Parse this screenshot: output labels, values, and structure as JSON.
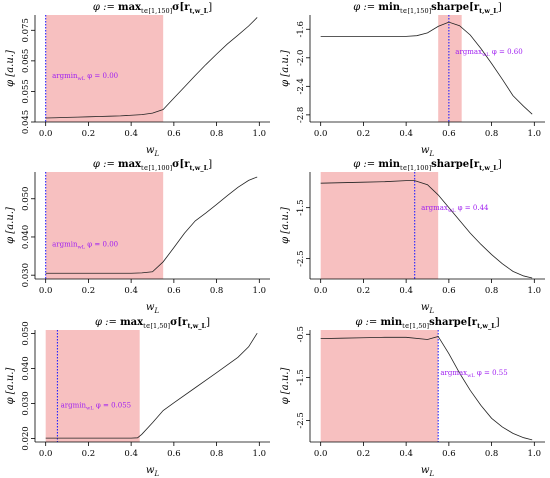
{
  "chart_data": [
    {
      "type": "line",
      "title": "φ := max_{t∈[1,150]} σ[r_{t,w_L}]",
      "title_parts": {
        "op": "max",
        "range": "t∈[1,150]",
        "stat": "σ[r",
        "sub": "t,w_L",
        "close": "]"
      },
      "xlabel": "w_L",
      "ylabel": "φ [a.u.]",
      "xlim": [
        0,
        1
      ],
      "ylim": [
        0.045,
        0.08
      ],
      "xticks": [
        0.0,
        0.2,
        0.4,
        0.6,
        0.8,
        1.0
      ],
      "xtick_labels": [
        "0.0",
        "0.2",
        "0.4",
        "0.6",
        "0.8",
        "1.0"
      ],
      "yticks": [
        0.045,
        0.055,
        0.065,
        0.075
      ],
      "ytick_labels": [
        "0.045",
        "0.055",
        "0.065",
        "0.075"
      ],
      "band": [
        0.0,
        0.55
      ],
      "vline": 0.0,
      "annotation": "argmin_{w_L} φ = 0.00",
      "annotation_pos": [
        0.03,
        0.0594
      ],
      "x": [
        0.0,
        0.05,
        0.1,
        0.15,
        0.2,
        0.25,
        0.3,
        0.35,
        0.4,
        0.45,
        0.5,
        0.55,
        0.6,
        0.65,
        0.7,
        0.75,
        0.8,
        0.85,
        0.9,
        0.95,
        0.99
      ],
      "y": [
        0.0463,
        0.0464,
        0.0465,
        0.0466,
        0.0467,
        0.0468,
        0.0469,
        0.047,
        0.0472,
        0.0474,
        0.0479,
        0.0491,
        0.0528,
        0.0565,
        0.0602,
        0.0638,
        0.0672,
        0.0705,
        0.0734,
        0.0764,
        0.0792
      ]
    },
    {
      "type": "line",
      "title": "φ := min_{t∈[1,150]} sharpe[r_{t,w_L}]",
      "title_parts": {
        "op": "min",
        "range": "t∈[1,150]",
        "stat": "sharpe[r",
        "sub": "t,w_L",
        "close": "]"
      },
      "xlabel": "w_L",
      "ylabel": "φ [a.u.]",
      "xlim": [
        0,
        1
      ],
      "ylim": [
        -2.9,
        -1.4
      ],
      "xticks": [
        0.0,
        0.2,
        0.4,
        0.6,
        0.8,
        1.0
      ],
      "xtick_labels": [
        "0.0",
        "0.2",
        "0.4",
        "0.6",
        "0.8",
        "1.0"
      ],
      "yticks": [
        -2.8,
        -2.4,
        -2.0,
        -1.6
      ],
      "ytick_labels": [
        "-2.8",
        "-2.4",
        "-2.0",
        "-1.6"
      ],
      "band": [
        0.55,
        0.66
      ],
      "vline": 0.6,
      "annotation": "argmax_{w_L} φ = 0.60",
      "annotation_pos": [
        0.63,
        -1.95
      ],
      "x": [
        0.0,
        0.1,
        0.2,
        0.3,
        0.4,
        0.45,
        0.5,
        0.55,
        0.6,
        0.65,
        0.7,
        0.75,
        0.8,
        0.85,
        0.9,
        0.95,
        0.99
      ],
      "y": [
        -1.7,
        -1.7,
        -1.7,
        -1.7,
        -1.7,
        -1.69,
        -1.65,
        -1.56,
        -1.5,
        -1.55,
        -1.68,
        -1.87,
        -2.08,
        -2.3,
        -2.53,
        -2.68,
        -2.79
      ]
    },
    {
      "type": "line",
      "title": "φ := max_{t∈[1,100]} σ[r_{t,w_L}]",
      "title_parts": {
        "op": "max",
        "range": "t∈[1,100]",
        "stat": "σ[r",
        "sub": "t,w_L",
        "close": "]"
      },
      "xlabel": "w_L",
      "ylabel": "φ [a.u.]",
      "xlim": [
        0,
        1
      ],
      "ylim": [
        0.029,
        0.057
      ],
      "xticks": [
        0.0,
        0.2,
        0.4,
        0.6,
        0.8,
        1.0
      ],
      "xtick_labels": [
        "0.0",
        "0.2",
        "0.4",
        "0.6",
        "0.8",
        "1.0"
      ],
      "yticks": [
        0.03,
        0.04,
        0.05
      ],
      "ytick_labels": [
        "0.030",
        "0.040",
        "0.050"
      ],
      "band": [
        0.0,
        0.55
      ],
      "vline": 0.0,
      "annotation": "argmin_{w_L} φ = 0.00",
      "annotation_pos": [
        0.03,
        0.0375
      ],
      "x": [
        0.0,
        0.1,
        0.2,
        0.3,
        0.4,
        0.45,
        0.5,
        0.55,
        0.6,
        0.65,
        0.7,
        0.75,
        0.8,
        0.85,
        0.9,
        0.95,
        0.99
      ],
      "y": [
        0.0305,
        0.0305,
        0.0305,
        0.0305,
        0.0305,
        0.0306,
        0.0309,
        0.0335,
        0.0372,
        0.041,
        0.0442,
        0.0463,
        0.0485,
        0.0508,
        0.053,
        0.0548,
        0.0557
      ]
    },
    {
      "type": "line",
      "title": "φ := min_{t∈[1,100]} sharpe[r_{t,w_L}]",
      "title_parts": {
        "op": "min",
        "range": "t∈[1,100]",
        "stat": "sharpe[r",
        "sub": "t,w_L",
        "close": "]"
      },
      "xlabel": "w_L",
      "ylabel": "φ [a.u.]",
      "xlim": [
        0,
        1
      ],
      "ylim": [
        -2.9,
        -0.8
      ],
      "xticks": [
        0.0,
        0.2,
        0.4,
        0.6,
        0.8,
        1.0
      ],
      "xtick_labels": [
        "0.0",
        "0.2",
        "0.4",
        "0.6",
        "0.8",
        "1.0"
      ],
      "yticks": [
        -2.5,
        -1.5
      ],
      "ytick_labels": [
        "-2.5",
        "-1.5"
      ],
      "band": [
        0.0,
        0.55
      ],
      "vline": 0.44,
      "annotation": "argmax_{w_L} φ = 0.44",
      "annotation_pos": [
        0.47,
        -1.55
      ],
      "x": [
        0.0,
        0.1,
        0.2,
        0.3,
        0.4,
        0.44,
        0.5,
        0.55,
        0.6,
        0.65,
        0.7,
        0.75,
        0.8,
        0.85,
        0.9,
        0.95,
        0.99
      ],
      "y": [
        -1.02,
        -1.01,
        -1.0,
        -0.99,
        -0.97,
        -0.97,
        -1.05,
        -1.25,
        -1.5,
        -1.75,
        -2.0,
        -2.22,
        -2.42,
        -2.6,
        -2.75,
        -2.84,
        -2.88
      ]
    },
    {
      "type": "line",
      "title": "φ := max_{t∈[1,50]} σ[r_{t,w_L}]",
      "title_parts": {
        "op": "max",
        "range": "t∈[1,50]",
        "stat": "σ[r",
        "sub": "t,w_L",
        "close": "]"
      },
      "xlabel": "w_L",
      "ylabel": "φ [a.u.]",
      "xlim": [
        0,
        1
      ],
      "ylim": [
        0.019,
        0.051
      ],
      "xticks": [
        0.0,
        0.2,
        0.4,
        0.6,
        0.8,
        1.0
      ],
      "xtick_labels": [
        "0.0",
        "0.2",
        "0.4",
        "0.6",
        "0.8",
        "1.0"
      ],
      "yticks": [
        0.02,
        0.03,
        0.04,
        0.05
      ],
      "ytick_labels": [
        "0.020",
        "0.030",
        "0.040",
        "0.050"
      ],
      "band": [
        0.0,
        0.44
      ],
      "vline": 0.055,
      "annotation": "argmin_{w_L} φ = 0.055",
      "annotation_pos": [
        0.07,
        0.0288
      ],
      "x": [
        0.0,
        0.1,
        0.2,
        0.3,
        0.4,
        0.43,
        0.45,
        0.5,
        0.55,
        0.6,
        0.7,
        0.8,
        0.9,
        0.95,
        0.99
      ],
      "y": [
        0.0201,
        0.0201,
        0.0201,
        0.0201,
        0.0201,
        0.0202,
        0.0212,
        0.0245,
        0.028,
        0.0302,
        0.0345,
        0.0388,
        0.0432,
        0.0462,
        0.0501
      ]
    },
    {
      "type": "line",
      "title": "φ := min_{t∈[1,50]} sharpe[r_{t,w_L}]",
      "title_parts": {
        "op": "min",
        "range": "t∈[1,50]",
        "stat": "sharpe[r",
        "sub": "t,w_L",
        "close": "]"
      },
      "xlabel": "w_L",
      "ylabel": "φ [a.u.]",
      "xlim": [
        0,
        1
      ],
      "ylim": [
        -3.0,
        -0.4
      ],
      "xticks": [
        0.0,
        0.2,
        0.4,
        0.6,
        0.8,
        1.0
      ],
      "xtick_labels": [
        "0.0",
        "0.2",
        "0.4",
        "0.6",
        "0.8",
        "1.0"
      ],
      "yticks": [
        -2.5,
        -1.5,
        -0.5
      ],
      "ytick_labels": [
        "-2.5",
        "-1.5",
        "-0.5"
      ],
      "band": [
        0.0,
        0.55
      ],
      "vline": 0.55,
      "annotation": "argmax_{w_L} φ = 0.55",
      "annotation_pos": [
        0.56,
        -1.45
      ],
      "x": [
        0.0,
        0.1,
        0.2,
        0.3,
        0.4,
        0.5,
        0.55,
        0.6,
        0.65,
        0.7,
        0.75,
        0.8,
        0.85,
        0.9,
        0.95,
        0.99
      ],
      "y": [
        -0.6,
        -0.59,
        -0.58,
        -0.57,
        -0.57,
        -0.62,
        -0.55,
        -0.95,
        -1.4,
        -1.8,
        -2.15,
        -2.45,
        -2.65,
        -2.8,
        -2.9,
        -2.95
      ]
    }
  ]
}
